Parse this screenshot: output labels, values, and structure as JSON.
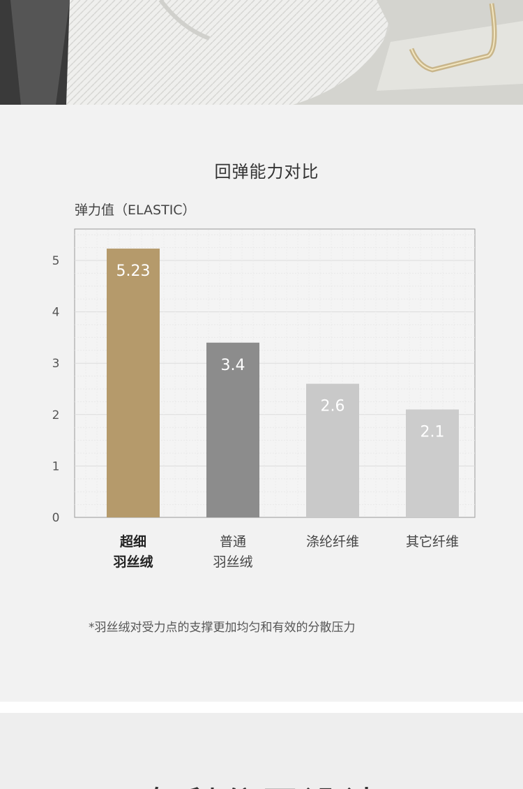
{
  "chart_data": {
    "type": "bar",
    "title": "回弹能力对比",
    "ylabel": "弹力值（ELASTIC）",
    "xlabel": "",
    "categories": [
      "超细\n羽丝绒",
      "普通\n羽丝绒",
      "涤纶纤维",
      "其它纤维"
    ],
    "values": [
      5.23,
      3.4,
      2.6,
      2.1
    ],
    "value_labels": [
      "5.23",
      "3.4",
      "2.6",
      "2.1"
    ],
    "colors": [
      "#b59a6b",
      "#8c8c8c",
      "#c9c9c9",
      "#cccccc"
    ],
    "ylim": [
      0,
      5.6
    ],
    "yticks": [
      0,
      1,
      2,
      3,
      4,
      5
    ],
    "grid": true,
    "legend": "none",
    "highlight_first_category": true
  },
  "footnote": "*羽丝绒对受力点的支撑更加均匀和有效的分散压力",
  "next_section": {
    "heading": "专利分区设计"
  }
}
